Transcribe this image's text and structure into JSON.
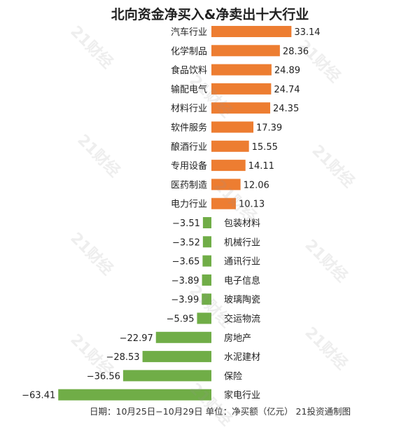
{
  "chart_data": {
    "type": "bar",
    "orientation": "horizontal",
    "title": "北向资金净买入&净卖出十大行业",
    "categories": [
      "汽车行业",
      "化学制品",
      "食品饮料",
      "输配电气",
      "材料行业",
      "软件服务",
      "酿酒行业",
      "专用设备",
      "医药制造",
      "电力行业",
      "包装材料",
      "机械行业",
      "通讯行业",
      "电子信息",
      "玻璃陶瓷",
      "交运物流",
      "房地产",
      "水泥建材",
      "保险",
      "家电行业"
    ],
    "values": [
      33.14,
      28.36,
      24.89,
      24.74,
      24.35,
      17.39,
      15.55,
      14.11,
      12.06,
      10.13,
      -3.51,
      -3.52,
      -3.65,
      -3.89,
      -3.99,
      -5.95,
      -22.97,
      -28.53,
      -36.56,
      -63.41
    ],
    "value_labels": [
      "33.14",
      "28.36",
      "24.89",
      "24.74",
      "24.35",
      "17.39",
      "15.55",
      "14.11",
      "12.06",
      "10.13",
      "−3.51",
      "−3.52",
      "−3.65",
      "−3.89",
      "−3.99",
      "−5.95",
      "−22.97",
      "−28.53",
      "−36.56",
      "−63.41"
    ],
    "colors": {
      "positive": "#ED7D31",
      "negative": "#70AD47"
    },
    "grid": false,
    "legend": "none"
  },
  "footer": "日期：10月25日−10月29日 单位：净买额（亿元） 21投资通制图",
  "watermark": "21财经"
}
